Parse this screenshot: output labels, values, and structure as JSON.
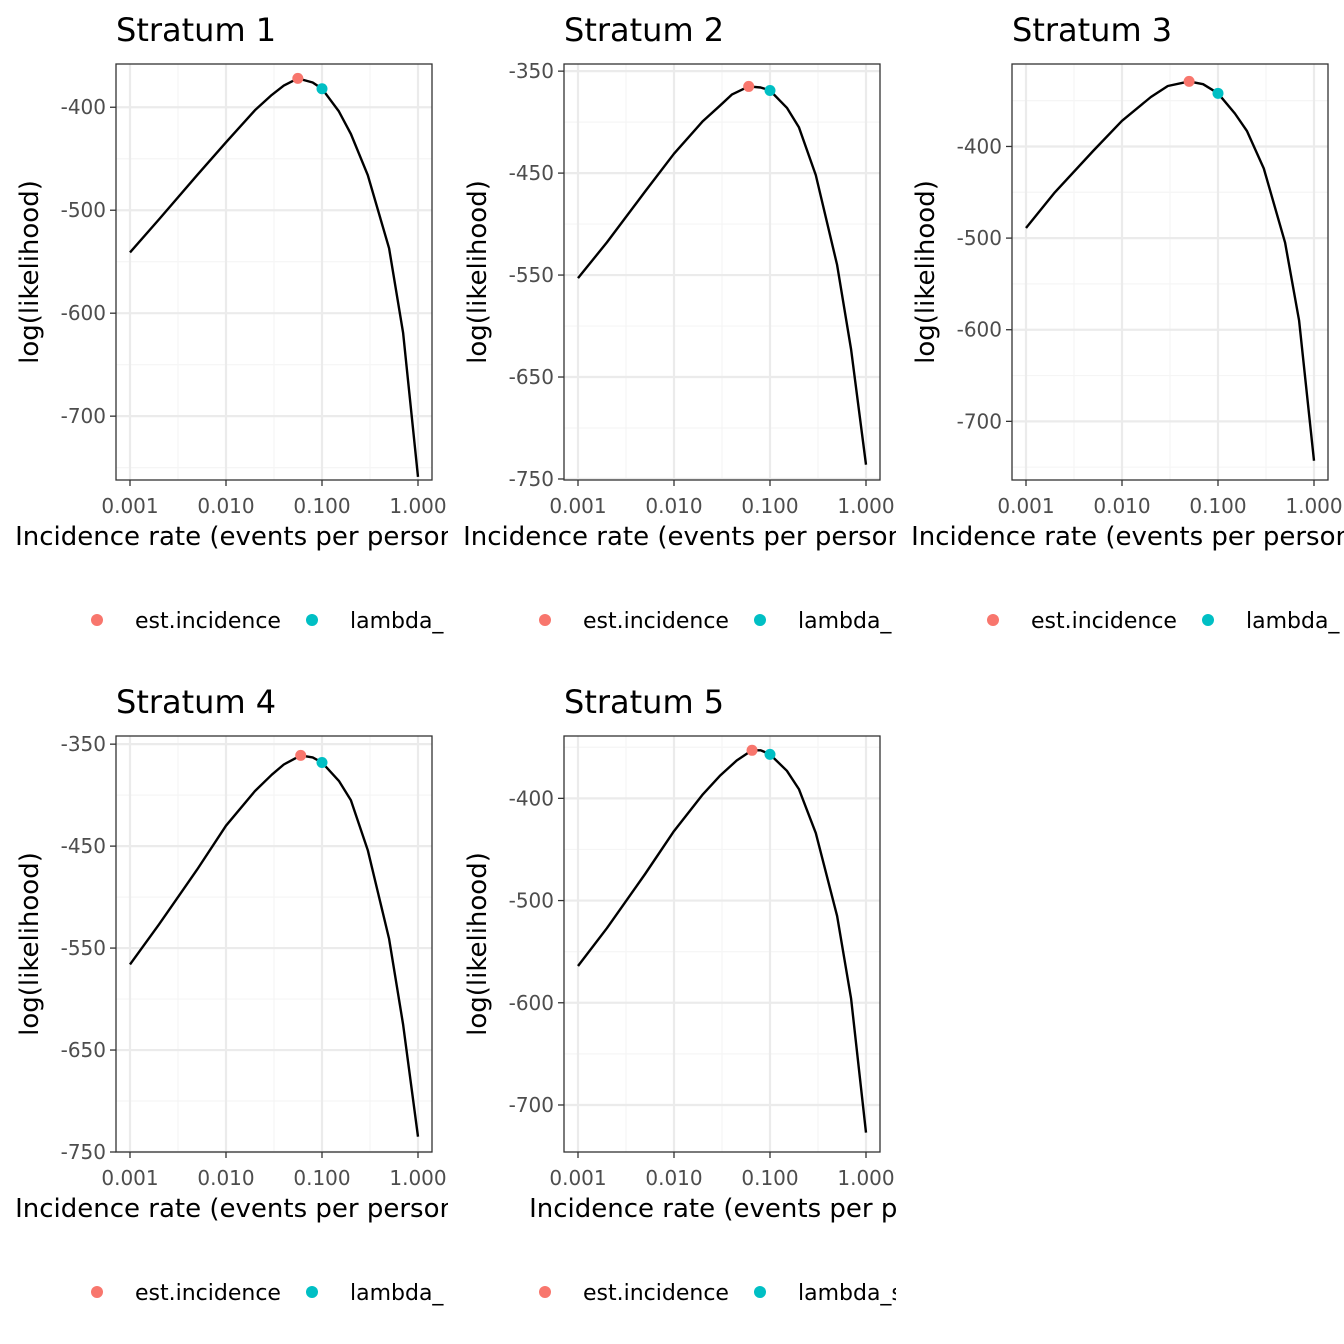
{
  "colors": {
    "est_incidence": "#F8766D",
    "lambda_start": "#00BFC4",
    "curve": "#000000",
    "grid_major": "#ebebeb",
    "grid_minor": "#f5f5f5",
    "panel_border": "#333333"
  },
  "chart_data": [
    {
      "type": "line",
      "title": "Stratum 1",
      "xlabel": "Incidence rate (events per person:year)",
      "ylabel": "log(likelihood)",
      "x_scale": "log10",
      "xlim": [
        0.001,
        1.0
      ],
      "ylim": [
        -762,
        -358
      ],
      "x_ticks": [
        0.001,
        0.01,
        0.1,
        1.0
      ],
      "x_tick_labels": [
        "0.001",
        "0.010",
        "0.100",
        "1.000"
      ],
      "y_ticks": [
        -400,
        -500,
        -600,
        -700
      ],
      "y_tick_labels": [
        "-400",
        "-500",
        "-600",
        "-700"
      ],
      "curve": {
        "x": [
          0.001,
          0.002,
          0.005,
          0.01,
          0.02,
          0.03,
          0.04,
          0.056,
          0.08,
          0.1,
          0.15,
          0.2,
          0.3,
          0.5,
          0.7,
          1.0
        ],
        "y": [
          -541,
          -509,
          -466,
          -434,
          -403,
          -388,
          -379,
          -372,
          -376,
          -382,
          -404,
          -426,
          -466,
          -537,
          -619,
          -759
        ]
      },
      "points": [
        {
          "series": "est.incidence",
          "x": 0.056,
          "y": -372
        },
        {
          "series": "lambda_start",
          "x": 0.1,
          "y": -382
        }
      ],
      "legend": [
        "est.incidence",
        "lambda_"
      ],
      "grid": true,
      "legend_position": "bottom"
    },
    {
      "type": "line",
      "title": "Stratum 2",
      "xlabel": "Incidence rate (events per person:year)",
      "ylabel": "log(likelihood)",
      "x_scale": "log10",
      "xlim": [
        0.001,
        1.0
      ],
      "ylim": [
        -751,
        -343
      ],
      "x_ticks": [
        0.001,
        0.01,
        0.1,
        1.0
      ],
      "x_tick_labels": [
        "0.001",
        "0.010",
        "0.100",
        "1.000"
      ],
      "y_ticks": [
        -350,
        -450,
        -550,
        -650,
        -750
      ],
      "y_tick_labels": [
        "-350",
        "-450",
        "-550",
        "-650",
        "-750"
      ],
      "curve": {
        "x": [
          0.001,
          0.002,
          0.005,
          0.01,
          0.02,
          0.03,
          0.04,
          0.06,
          0.08,
          0.1,
          0.15,
          0.2,
          0.3,
          0.5,
          0.7,
          1.0
        ],
        "y": [
          -553,
          -518,
          -468,
          -431,
          -399,
          -384,
          -373,
          -365,
          -366,
          -369,
          -386,
          -405,
          -452,
          -540,
          -623,
          -736
        ]
      },
      "points": [
        {
          "series": "est.incidence",
          "x": 0.06,
          "y": -365
        },
        {
          "series": "lambda_start",
          "x": 0.1,
          "y": -369
        }
      ],
      "legend": [
        "est.incidence",
        "lambda_"
      ],
      "grid": true,
      "legend_position": "bottom"
    },
    {
      "type": "line",
      "title": "Stratum 3",
      "xlabel": "Incidence rate (events per person:year)",
      "ylabel": "log(likelihood)",
      "x_scale": "log10",
      "xlim": [
        0.001,
        1.0
      ],
      "ylim": [
        -764,
        -310
      ],
      "x_ticks": [
        0.001,
        0.01,
        0.1,
        1.0
      ],
      "x_tick_labels": [
        "0.001",
        "0.010",
        "0.100",
        "1.000"
      ],
      "y_ticks": [
        -400,
        -500,
        -600,
        -700
      ],
      "y_tick_labels": [
        "-400",
        "-500",
        "-600",
        "-700"
      ],
      "curve": {
        "x": [
          0.001,
          0.002,
          0.005,
          0.01,
          0.02,
          0.03,
          0.05,
          0.07,
          0.1,
          0.15,
          0.2,
          0.3,
          0.5,
          0.7,
          1.0
        ],
        "y": [
          -489,
          -450,
          -405,
          -372,
          -346,
          -334,
          -329,
          -332,
          -342,
          -364,
          -383,
          -424,
          -505,
          -590,
          -743
        ]
      },
      "points": [
        {
          "series": "est.incidence",
          "x": 0.05,
          "y": -329
        },
        {
          "series": "lambda_start",
          "x": 0.1,
          "y": -342
        }
      ],
      "legend": [
        "est.incidence",
        "lambda_"
      ],
      "grid": true,
      "legend_position": "bottom"
    },
    {
      "type": "line",
      "title": "Stratum 4",
      "xlabel": "Incidence rate (events per person:year)",
      "ylabel": "log(likelihood)",
      "x_scale": "log10",
      "xlim": [
        0.001,
        1.0
      ],
      "ylim": [
        -750,
        -342
      ],
      "x_ticks": [
        0.001,
        0.01,
        0.1,
        1.0
      ],
      "x_tick_labels": [
        "0.001",
        "0.010",
        "0.100",
        "1.000"
      ],
      "y_ticks": [
        -350,
        -450,
        -550,
        -650,
        -750
      ],
      "y_tick_labels": [
        "-350",
        "-450",
        "-550",
        "-650",
        "-750"
      ],
      "curve": {
        "x": [
          0.001,
          0.002,
          0.005,
          0.01,
          0.02,
          0.03,
          0.04,
          0.06,
          0.08,
          0.1,
          0.15,
          0.2,
          0.3,
          0.5,
          0.7,
          1.0
        ],
        "y": [
          -566,
          -527,
          -473,
          -430,
          -396,
          -380,
          -370,
          -361,
          -363,
          -368,
          -386,
          -405,
          -454,
          -541,
          -625,
          -735
        ]
      },
      "points": [
        {
          "series": "est.incidence",
          "x": 0.06,
          "y": -361
        },
        {
          "series": "lambda_start",
          "x": 0.1,
          "y": -368
        }
      ],
      "legend": [
        "est.incidence",
        "lambda_"
      ],
      "grid": true,
      "legend_position": "bottom"
    },
    {
      "type": "line",
      "title": "Stratum 5",
      "xlabel": "Incidence rate (events per person:year)",
      "ylabel": "log(likelihood)",
      "x_scale": "log10",
      "xlim": [
        0.001,
        1.0
      ],
      "ylim": [
        -746,
        -339
      ],
      "x_ticks": [
        0.001,
        0.01,
        0.1,
        1.0
      ],
      "x_tick_labels": [
        "0.001",
        "0.010",
        "0.100",
        "1.000"
      ],
      "y_ticks": [
        -400,
        -500,
        -600,
        -700
      ],
      "y_tick_labels": [
        "-400",
        "-500",
        "-600",
        "-700"
      ],
      "curve": {
        "x": [
          0.001,
          0.002,
          0.005,
          0.01,
          0.02,
          0.03,
          0.045,
          0.065,
          0.08,
          0.1,
          0.15,
          0.2,
          0.3,
          0.5,
          0.7,
          1.0
        ],
        "y": [
          -564,
          -527,
          -474,
          -432,
          -396,
          -378,
          -363,
          -353,
          -353,
          -357,
          -373,
          -391,
          -434,
          -515,
          -596,
          -727
        ]
      },
      "points": [
        {
          "series": "est.incidence",
          "x": 0.065,
          "y": -353
        },
        {
          "series": "lambda_start",
          "x": 0.1,
          "y": -357
        }
      ],
      "legend": [
        "est.incidence",
        "lambda_start"
      ],
      "grid": true,
      "legend_position": "bottom"
    }
  ]
}
